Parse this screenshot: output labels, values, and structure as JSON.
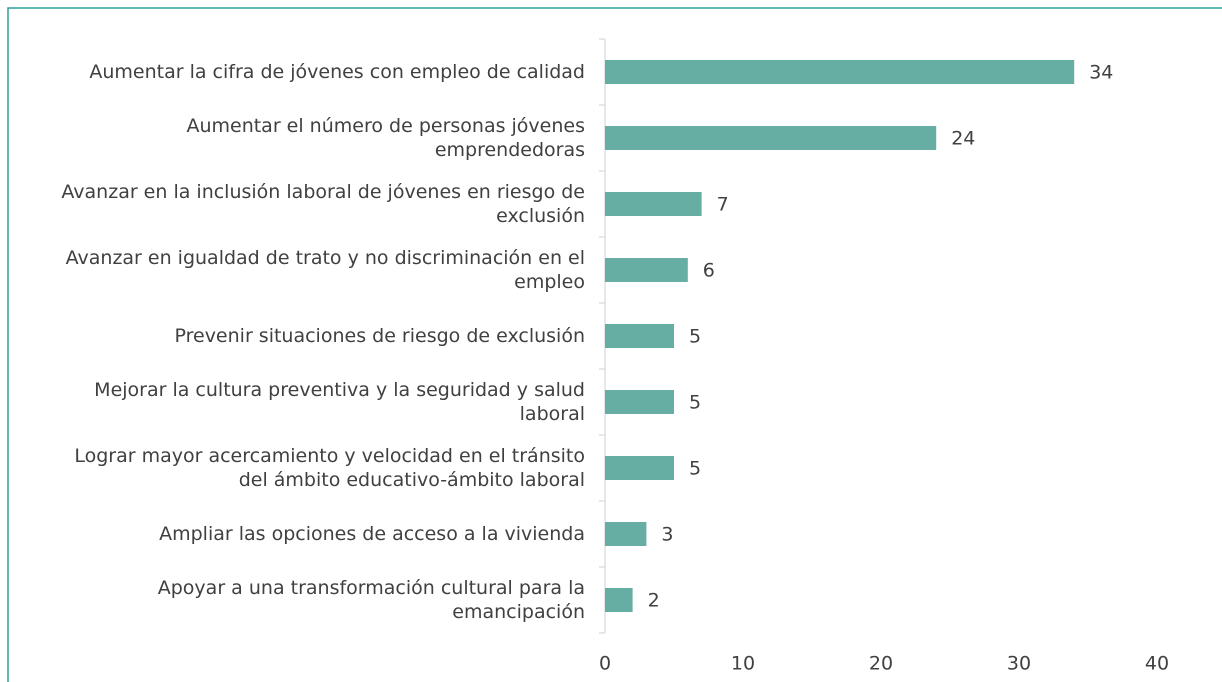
{
  "chart_data": {
    "type": "bar",
    "orientation": "horizontal",
    "categories": [
      "Aumentar la cifra de jóvenes con empleo de calidad",
      "Aumentar el número de personas jóvenes emprendedoras",
      "Avanzar en la inclusión laboral de jóvenes en riesgo de exclusión",
      "Avanzar en igualdad de trato y no discriminación en el empleo",
      "Prevenir situaciones de riesgo de exclusión",
      "Mejorar la cultura preventiva y la seguridad y salud laboral",
      "Lograr mayor acercamiento y velocidad en el tránsito del ámbito educativo-ámbito laboral",
      "Ampliar las opciones de acceso a la vivienda",
      "Apoyar a una transformación cultural para la emancipación"
    ],
    "values": [
      34,
      24,
      7,
      6,
      5,
      5,
      5,
      3,
      2
    ],
    "color": "#66ada3",
    "xlim": [
      0,
      40
    ],
    "xticks": [
      0,
      10,
      20,
      30,
      40
    ],
    "grid": false
  }
}
